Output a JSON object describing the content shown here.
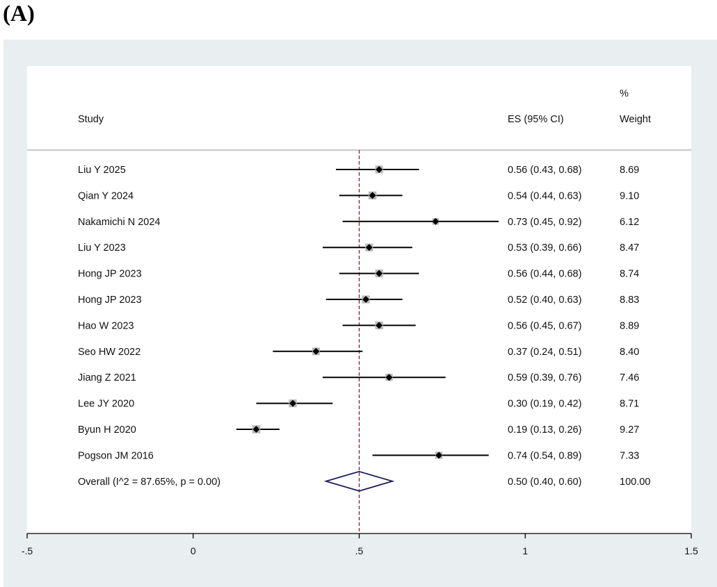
{
  "panel_label": "(A)",
  "chart_data": {
    "type": "forest",
    "header": {
      "study": "Study",
      "es": "ES (95% CI)",
      "weight_top": "%",
      "weight": "Weight"
    },
    "x_ticks": [
      -0.5,
      0,
      0.5,
      1,
      1.5
    ],
    "x_tick_labels": [
      "-.5",
      "0",
      ".5",
      "1",
      "1.5"
    ],
    "xlim": [
      -0.5,
      1.5
    ],
    "reference_line": 0.5,
    "studies": [
      {
        "name": "Liu Y 2025",
        "es": 0.56,
        "lo": 0.43,
        "hi": 0.68,
        "es_text": "0.56 (0.43, 0.68)",
        "weight": 8.69,
        "weight_text": "8.69"
      },
      {
        "name": "Qian Y 2024",
        "es": 0.54,
        "lo": 0.44,
        "hi": 0.63,
        "es_text": "0.54 (0.44, 0.63)",
        "weight": 9.1,
        "weight_text": "9.10"
      },
      {
        "name": "Nakamichi N 2024",
        "es": 0.73,
        "lo": 0.45,
        "hi": 0.92,
        "es_text": "0.73 (0.45, 0.92)",
        "weight": 6.12,
        "weight_text": "6.12"
      },
      {
        "name": "Liu Y 2023",
        "es": 0.53,
        "lo": 0.39,
        "hi": 0.66,
        "es_text": "0.53 (0.39, 0.66)",
        "weight": 8.47,
        "weight_text": "8.47"
      },
      {
        "name": "Hong JP 2023",
        "es": 0.56,
        "lo": 0.44,
        "hi": 0.68,
        "es_text": "0.56 (0.44, 0.68)",
        "weight": 8.74,
        "weight_text": "8.74"
      },
      {
        "name": "Hong JP 2023",
        "es": 0.52,
        "lo": 0.4,
        "hi": 0.63,
        "es_text": "0.52 (0.40, 0.63)",
        "weight": 8.83,
        "weight_text": "8.83"
      },
      {
        "name": "Hao W 2023",
        "es": 0.56,
        "lo": 0.45,
        "hi": 0.67,
        "es_text": "0.56 (0.45, 0.67)",
        "weight": 8.89,
        "weight_text": "8.89"
      },
      {
        "name": "Seo HW 2022",
        "es": 0.37,
        "lo": 0.24,
        "hi": 0.51,
        "es_text": "0.37 (0.24, 0.51)",
        "weight": 8.4,
        "weight_text": "8.40"
      },
      {
        "name": "Jiang Z 2021",
        "es": 0.59,
        "lo": 0.39,
        "hi": 0.76,
        "es_text": "0.59 (0.39, 0.76)",
        "weight": 7.46,
        "weight_text": "7.46"
      },
      {
        "name": "Lee JY 2020",
        "es": 0.3,
        "lo": 0.19,
        "hi": 0.42,
        "es_text": "0.30 (0.19, 0.42)",
        "weight": 8.71,
        "weight_text": "8.71"
      },
      {
        "name": "Byun H 2020",
        "es": 0.19,
        "lo": 0.13,
        "hi": 0.26,
        "es_text": "0.19 (0.13, 0.26)",
        "weight": 9.27,
        "weight_text": "9.27"
      },
      {
        "name": "Pogson JM 2016",
        "es": 0.74,
        "lo": 0.54,
        "hi": 0.89,
        "es_text": "0.74 (0.54, 0.89)",
        "weight": 7.33,
        "weight_text": "7.33"
      }
    ],
    "overall": {
      "label": "Overall  (I^2 = 87.65%, p = 0.00)",
      "es": 0.5,
      "lo": 0.4,
      "hi": 0.6,
      "es_text": "0.50 (0.40, 0.60)",
      "weight_text": "100.00"
    },
    "colors": {
      "outer_bg": "#e9eef1",
      "plot_bg": "#ffffff",
      "weight_box": "#b9b9b9",
      "ref_line": "#8b1a2b",
      "diamond": "#1a1f5c",
      "ci_line": "#000000"
    }
  }
}
